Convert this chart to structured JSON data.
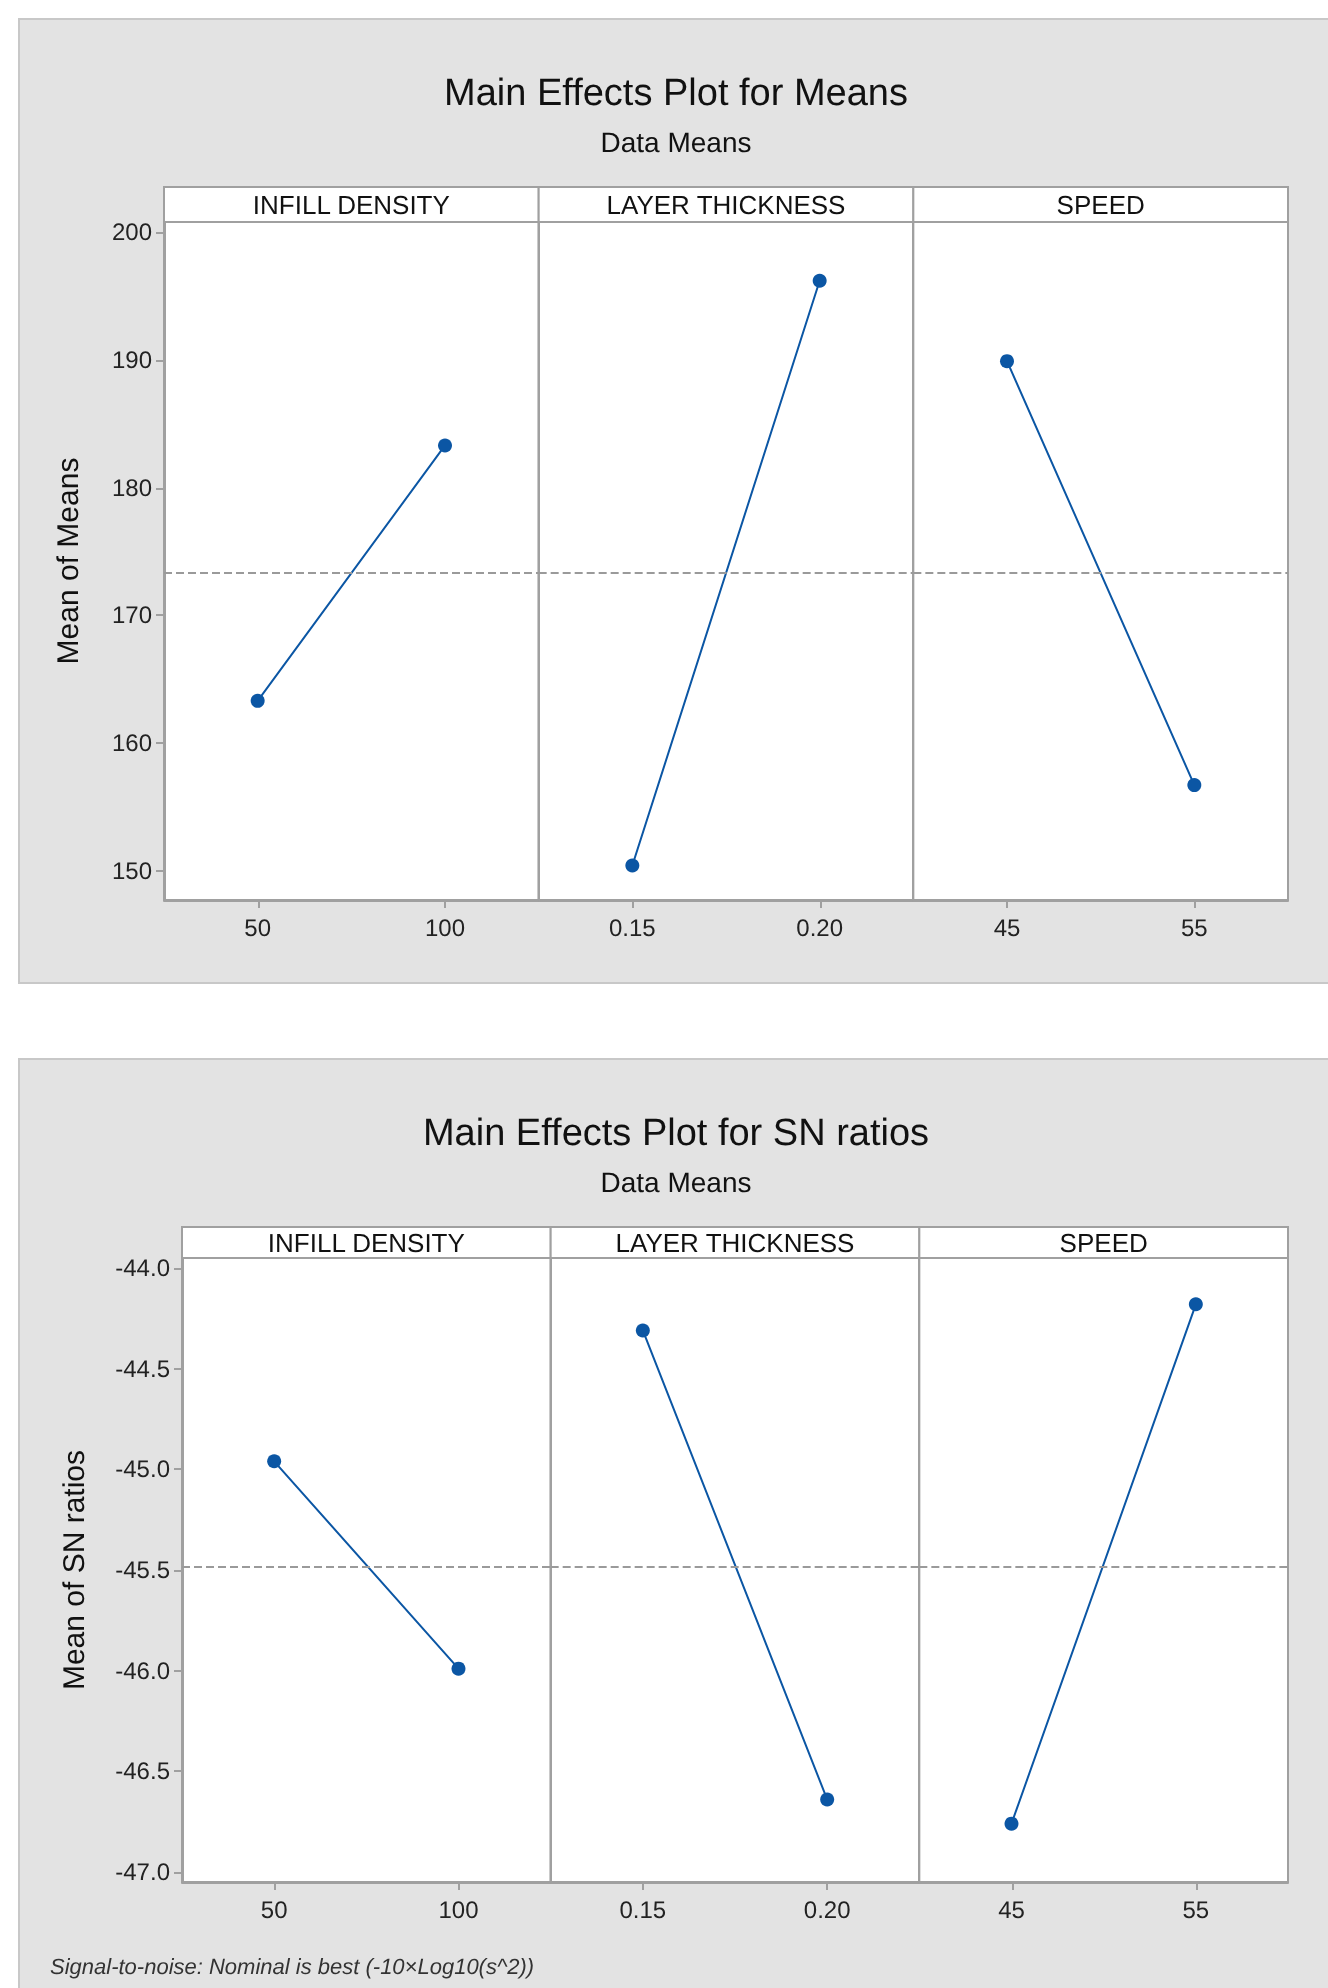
{
  "chart_data": [
    {
      "type": "line",
      "title": "Main Effects Plot for Means",
      "subtitle": "Data Means",
      "ylabel": "Mean of Means",
      "categories": [
        "50",
        "100",
        "0.15",
        "0.20",
        "45",
        "55"
      ],
      "series": [
        {
          "color": "#0b56a4",
          "values": [
            163.3,
            183.3,
            null,
            null,
            null,
            null
          ]
        },
        {
          "color": "#0b56a4",
          "values": [
            null,
            null,
            150.4,
            196.2,
            null,
            null
          ]
        },
        {
          "color": "#0b56a4",
          "values": [
            null,
            null,
            null,
            null,
            189.9,
            156.7
          ]
        }
      ],
      "marker": "circle",
      "line_style": "solid",
      "ylim": [
        147.7,
        200.8
      ],
      "yticks": [
        150,
        160,
        170,
        180,
        190,
        200
      ],
      "ref_lines": [
        {
          "axis": "y",
          "value": 173.3,
          "color": "#9a9a9a",
          "line_style": "dashed"
        }
      ],
      "annotations": [
        "INFILL DENSITY",
        "LAYER THICKNESS",
        "SPEED"
      ]
    },
    {
      "type": "line",
      "title": "Main Effects Plot for SN ratios",
      "subtitle": "Data Means",
      "ylabel": "Mean of SN ratios",
      "categories": [
        "50",
        "100",
        "0.15",
        "0.20",
        "45",
        "55"
      ],
      "series": [
        {
          "color": "#0b56a4",
          "values": [
            -44.96,
            -45.99,
            null,
            null,
            null,
            null
          ]
        },
        {
          "color": "#0b56a4",
          "values": [
            null,
            null,
            -44.31,
            -46.64,
            null,
            null
          ]
        },
        {
          "color": "#0b56a4",
          "values": [
            null,
            null,
            null,
            null,
            -46.76,
            -44.18
          ]
        }
      ],
      "marker": "circle",
      "line_style": "solid",
      "ylim": [
        -47.05,
        -43.95
      ],
      "yticks": [
        {
          "value": -47,
          "label": "-47.0"
        },
        -46.5,
        {
          "value": -46,
          "label": "-46.0"
        },
        -45.5,
        {
          "value": -45,
          "label": "-45.0"
        },
        -44.5,
        {
          "value": -44,
          "label": "-44.0"
        }
      ],
      "ref_lines": [
        {
          "axis": "y",
          "value": -45.48,
          "color": "#9a9a9a",
          "line_style": "dashed"
        }
      ],
      "annotations": [
        "INFILL DENSITY",
        "LAYER THICKNESS",
        "SPEED",
        "Signal-to-noise: Nominal is best (-10×Log10(s^2))"
      ]
    }
  ]
}
